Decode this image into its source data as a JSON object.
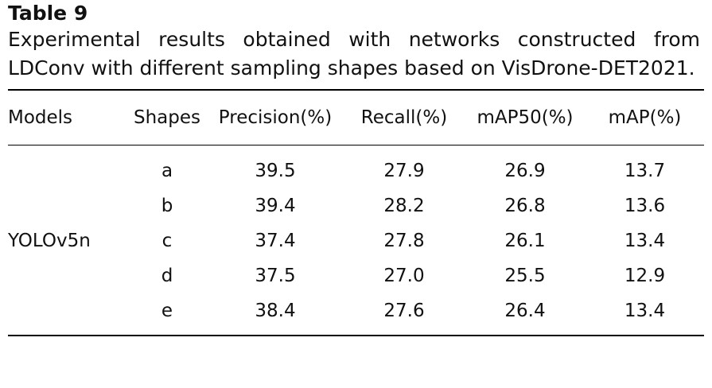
{
  "table": {
    "label": "Table 9",
    "caption": "Experimental results obtained with networks constructed from LDConv with different sampling shapes based on VisDrone-DET2021.",
    "headers": [
      "Models",
      "Shapes",
      "Precision(%)",
      "Recall(%)",
      "mAP50(%)",
      "mAP(%)"
    ],
    "group": "YOLOv5n",
    "rows": [
      {
        "shape": "a",
        "precision": "39.5",
        "recall": "27.9",
        "map50": "26.9",
        "map": "13.7"
      },
      {
        "shape": "b",
        "precision": "39.4",
        "recall": "28.2",
        "map50": "26.8",
        "map": "13.6"
      },
      {
        "shape": "c",
        "precision": "37.4",
        "recall": "27.8",
        "map50": "26.1",
        "map": "13.4"
      },
      {
        "shape": "d",
        "precision": "37.5",
        "recall": "27.0",
        "map50": "25.5",
        "map": "12.9"
      },
      {
        "shape": "e",
        "precision": "38.4",
        "recall": "27.6",
        "map50": "26.4",
        "map": "13.4"
      }
    ]
  }
}
